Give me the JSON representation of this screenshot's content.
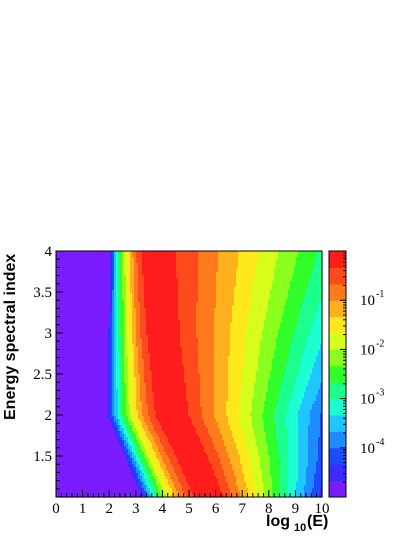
{
  "chart_data": {
    "type": "heatmap",
    "title": "",
    "xlabel_main": "log",
    "xlabel_sub": "10",
    "xlabel_tail": "(E)",
    "ylabel": "Energy spectral index",
    "xlim": [
      0,
      10
    ],
    "ylim": [
      1,
      4
    ],
    "x_ticks": [
      "0",
      "1",
      "2",
      "3",
      "4",
      "5",
      "6",
      "7",
      "8",
      "9",
      "10"
    ],
    "y_ticks": [
      "1.5",
      "2",
      "2.5",
      "3",
      "3.5",
      "4"
    ],
    "colorbar": {
      "scale": "log",
      "zlim": [
        1e-05,
        1
      ],
      "tick_base": "10",
      "tick_exponents": [
        "-1",
        "-2",
        "-3",
        "-4"
      ],
      "tick_values": [
        0.1,
        0.01,
        0.001,
        0.0001
      ]
    },
    "peak_ridge": {
      "description_points": [
        {
          "y": 4.0,
          "x": 3.7
        },
        {
          "y": 3.0,
          "x": 4.0
        },
        {
          "y": 2.0,
          "x": 4.5
        },
        {
          "y": 1.5,
          "x": 5.3
        },
        {
          "y": 1.0,
          "x": 6.0
        }
      ]
    },
    "levels": [
      {
        "color": "#7a1cff"
      },
      {
        "color": "#3a2cff"
      },
      {
        "color": "#1c4cff"
      },
      {
        "color": "#1c8cff"
      },
      {
        "color": "#1cc8ff"
      },
      {
        "color": "#1cffd0"
      },
      {
        "color": "#1cff8c"
      },
      {
        "color": "#32ff2a"
      },
      {
        "color": "#8cff1c"
      },
      {
        "color": "#d8ff1c"
      },
      {
        "color": "#ffe81c"
      },
      {
        "color": "#ffb01c"
      },
      {
        "color": "#ff7a1c"
      },
      {
        "color": "#ff4a1c"
      },
      {
        "color": "#ff1c1c"
      }
    ]
  }
}
